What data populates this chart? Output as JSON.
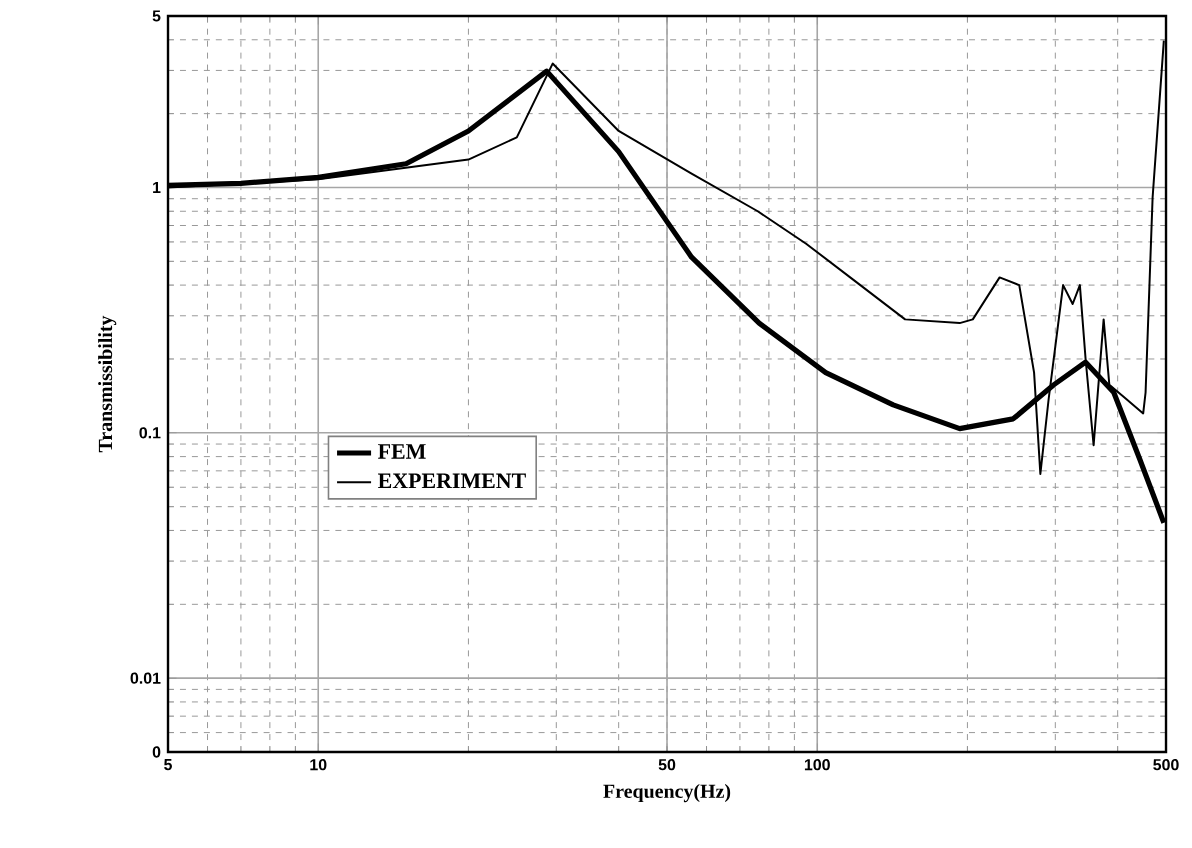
{
  "chart_data": {
    "type": "line",
    "xlabel": "Frequency(Hz)",
    "ylabel": "Transmissibility",
    "log": "xy",
    "grid": true,
    "legend": "left",
    "marker": "none",
    "xlim": [
      5,
      500
    ],
    "ylim": [
      0.005,
      5
    ],
    "xticks": [
      5,
      10,
      50,
      100,
      500
    ],
    "yticks": [
      {
        "value": 0.005,
        "label": "0"
      },
      0.01,
      0.1,
      1,
      5
    ],
    "series": [
      {
        "name": "FEM",
        "color": "#000000",
        "x": [
          5,
          7,
          10,
          15,
          20,
          28.7,
          40,
          56,
          76.5,
          104,
          142,
          193,
          247,
          298,
          345,
          393,
          443,
          495
        ],
        "values": [
          1.02,
          1.04,
          1.1,
          1.25,
          1.7,
          2.98,
          1.4,
          0.52,
          0.28,
          0.176,
          0.13,
          0.104,
          0.114,
          0.157,
          0.194,
          0.146,
          0.078,
          0.043
        ]
      },
      {
        "name": "EXPERIMENT",
        "color": "#000000",
        "x": [
          5,
          10,
          20,
          25,
          29.5,
          40,
          56,
          76,
          95,
          122,
          150,
          193,
          205,
          232,
          254,
          272,
          280,
          291,
          311,
          325,
          336,
          345,
          358,
          375,
          385,
          415,
          450,
          455,
          470,
          495
        ],
        "values": [
          1.0,
          1.08,
          1.3,
          1.6,
          3.2,
          1.7,
          1.14,
          0.8,
          0.59,
          0.4,
          0.29,
          0.28,
          0.29,
          0.43,
          0.4,
          0.176,
          0.068,
          0.138,
          0.4,
          0.335,
          0.4,
          0.2,
          0.089,
          0.29,
          0.157,
          0.138,
          0.12,
          0.146,
          0.91,
          3.97
        ]
      }
    ]
  }
}
